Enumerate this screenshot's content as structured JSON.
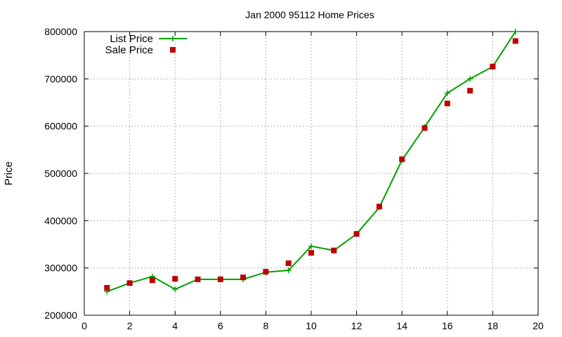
{
  "chart_data": {
    "type": "line",
    "title": "Jan 2000 95112 Home Prices",
    "xlabel": "",
    "ylabel": "Price",
    "xlim": [
      0,
      20
    ],
    "ylim": [
      200000,
      800000
    ],
    "x_ticks": [
      0,
      2,
      4,
      6,
      8,
      10,
      12,
      14,
      16,
      18,
      20
    ],
    "y_ticks": [
      200000,
      300000,
      400000,
      500000,
      600000,
      700000,
      800000
    ],
    "grid": true,
    "legend_position": "top-left",
    "series": [
      {
        "name": "List Price",
        "style": "line-with-plus-markers",
        "color": "#00a000",
        "x": [
          1,
          2,
          3,
          4,
          5,
          6,
          7,
          8,
          9,
          10,
          11,
          12,
          13,
          14,
          15,
          16,
          17,
          18,
          19
        ],
        "values": [
          250000,
          268000,
          282000,
          255000,
          276000,
          276000,
          276000,
          291000,
          295000,
          346000,
          337000,
          372000,
          428000,
          528000,
          598000,
          670000,
          700000,
          726000,
          800000
        ]
      },
      {
        "name": "Sale Price",
        "style": "square-markers",
        "color": "#c00000",
        "x": [
          1,
          2,
          3,
          4,
          5,
          6,
          7,
          8,
          9,
          10,
          11,
          12,
          13,
          14,
          15,
          16,
          17,
          18,
          19
        ],
        "values": [
          258000,
          268000,
          274000,
          277000,
          276000,
          276000,
          280000,
          292000,
          310000,
          332000,
          337000,
          372000,
          430000,
          530000,
          596000,
          648000,
          675000,
          726000,
          780000
        ]
      }
    ]
  }
}
